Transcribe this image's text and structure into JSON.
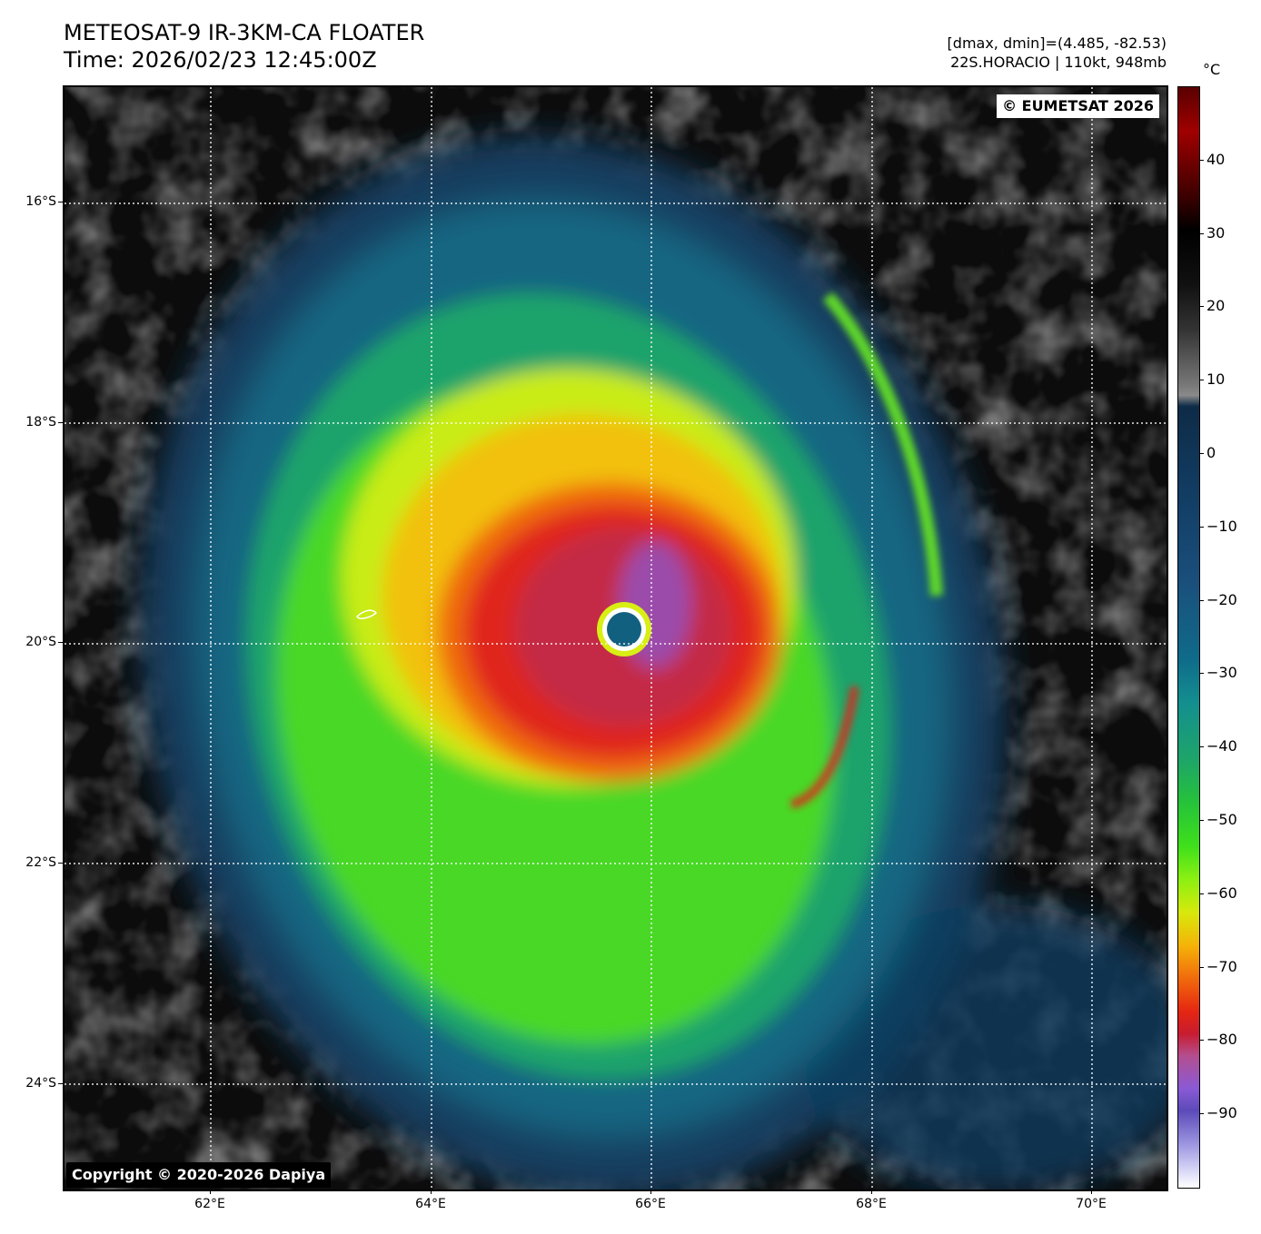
{
  "header": {
    "title_line1": "METEOSAT-9 IR-3KM-CA FLOATER",
    "title_line2": "Time: 2026/02/23 12:45:00Z",
    "info_line1": "[dmax, dmin]=(4.485, -82.53)",
    "info_line2": "22S.HORACIO | 110kt, 948mb"
  },
  "map": {
    "watermark": "© EUMETSAT 2026",
    "copyright": "Copyright © 2020-2026 Dapiya",
    "lat_labels": [
      "16°S",
      "18°S",
      "20°S",
      "22°S",
      "24°S"
    ],
    "lon_labels": [
      "62°E",
      "64°E",
      "66°E",
      "68°E",
      "70°E"
    ],
    "gridlines": "on",
    "storm_eye": {
      "lat": -19.9,
      "lon": 65.7
    }
  },
  "colorbar": {
    "unit": "°C",
    "tick_labels": [
      "40",
      "30",
      "20",
      "10",
      "0",
      "−10",
      "−20",
      "−30",
      "−40",
      "−50",
      "−60",
      "−70",
      "−80",
      "−90"
    ],
    "range": [
      -100,
      50
    ]
  }
}
